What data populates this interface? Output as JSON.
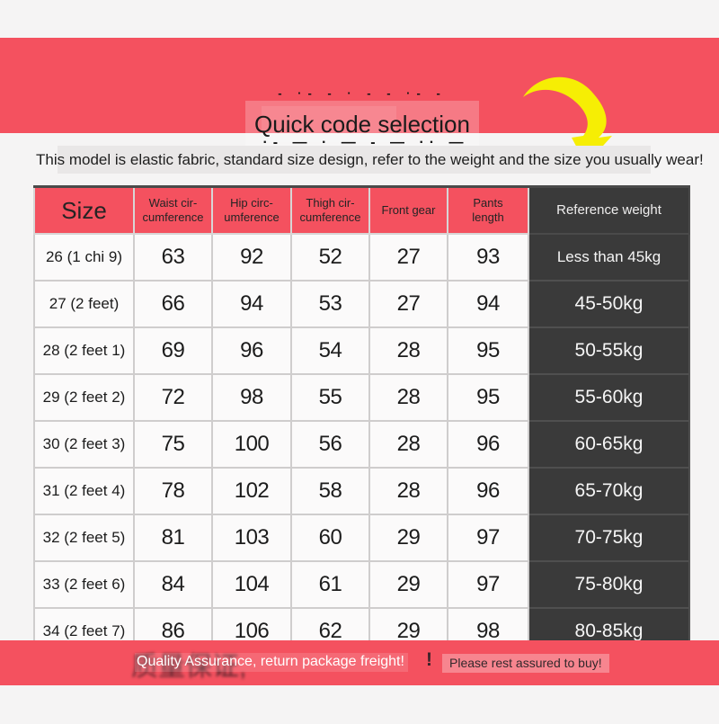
{
  "colors": {
    "accent_red": "#f4515f",
    "dark_column": "#3a3a3a",
    "arrow_yellow": "#f6ee04",
    "page_background": "#f5f4f4",
    "note_band": "#e9e7e7"
  },
  "icons": {
    "curved_arrow": "curved-down-right-arrow"
  },
  "banner": {
    "title": "Quick code selection",
    "obscured_top_marks": "- ·- - · - - ·- -",
    "obscured_bottom_marks": "·- — · — - — ·· —"
  },
  "note": {
    "text": "This model is elastic fabric, standard size design, refer to the weight and the size you usually wear!"
  },
  "table": {
    "headers": [
      "Size",
      "Waist cir-\ncumference",
      "Hip circ-\numference",
      "Thigh cir-\ncumference",
      "Front gear",
      "Pants\nlength",
      "Reference weight"
    ],
    "columns": [
      "size",
      "waist",
      "hip",
      "thigh",
      "front",
      "length",
      "weight"
    ],
    "rows": [
      {
        "size": "26 (1 chi 9)",
        "waist": "63",
        "hip": "92",
        "thigh": "52",
        "front": "27",
        "length": "93",
        "weight": "Less than 45kg"
      },
      {
        "size": "27 (2 feet)",
        "waist": "66",
        "hip": "94",
        "thigh": "53",
        "front": "27",
        "length": "94",
        "weight": "45-50kg"
      },
      {
        "size": "28 (2 feet 1)",
        "waist": "69",
        "hip": "96",
        "thigh": "54",
        "front": "28",
        "length": "95",
        "weight": "50-55kg"
      },
      {
        "size": "29 (2 feet 2)",
        "waist": "72",
        "hip": "98",
        "thigh": "55",
        "front": "28",
        "length": "95",
        "weight": "55-60kg"
      },
      {
        "size": "30 (2 feet 3)",
        "waist": "75",
        "hip": "100",
        "thigh": "56",
        "front": "28",
        "length": "96",
        "weight": "60-65kg"
      },
      {
        "size": "31 (2 feet 4)",
        "waist": "78",
        "hip": "102",
        "thigh": "58",
        "front": "28",
        "length": "96",
        "weight": "65-70kg"
      },
      {
        "size": "32 (2 feet 5)",
        "waist": "81",
        "hip": "103",
        "thigh": "60",
        "front": "29",
        "length": "97",
        "weight": "70-75kg"
      },
      {
        "size": "33 (2 feet 6)",
        "waist": "84",
        "hip": "104",
        "thigh": "61",
        "front": "29",
        "length": "97",
        "weight": "75-80kg"
      },
      {
        "size": "34 (2 feet 7)",
        "waist": "86",
        "hip": "106",
        "thigh": "62",
        "front": "29",
        "length": "98",
        "weight": "80-85kg"
      }
    ]
  },
  "footer": {
    "obscured_text": "质量保证,",
    "white_text": "Quality Assurance, return package freight!",
    "separator": "!",
    "dark_text": "Please rest assured to buy!"
  }
}
